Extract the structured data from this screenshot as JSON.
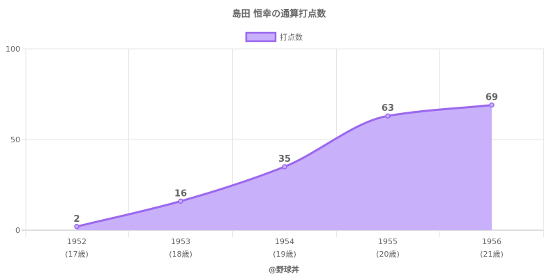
{
  "chart_data": {
    "type": "area",
    "title": "島田 恒幸の通算打点数",
    "legend": {
      "label": "打点数",
      "position": "top"
    },
    "categories": [
      "1952",
      "1953",
      "1954",
      "1955",
      "1956"
    ],
    "sub_labels": [
      "(17歳)",
      "(18歳)",
      "(19歳)",
      "(20歳)",
      "(21歳)"
    ],
    "series": [
      {
        "name": "打点数",
        "values": [
          2,
          16,
          35,
          63,
          69
        ]
      }
    ],
    "y_ticks": [
      "0",
      "50",
      "100"
    ],
    "ylim": [
      0,
      100
    ],
    "grid": true,
    "colors": {
      "line": "#9b68ee",
      "fill": "#c8b0fb",
      "grid": "#e6e6e6",
      "axis": "#bdbdbd"
    }
  },
  "footer": {
    "credit": "@野球丼"
  }
}
